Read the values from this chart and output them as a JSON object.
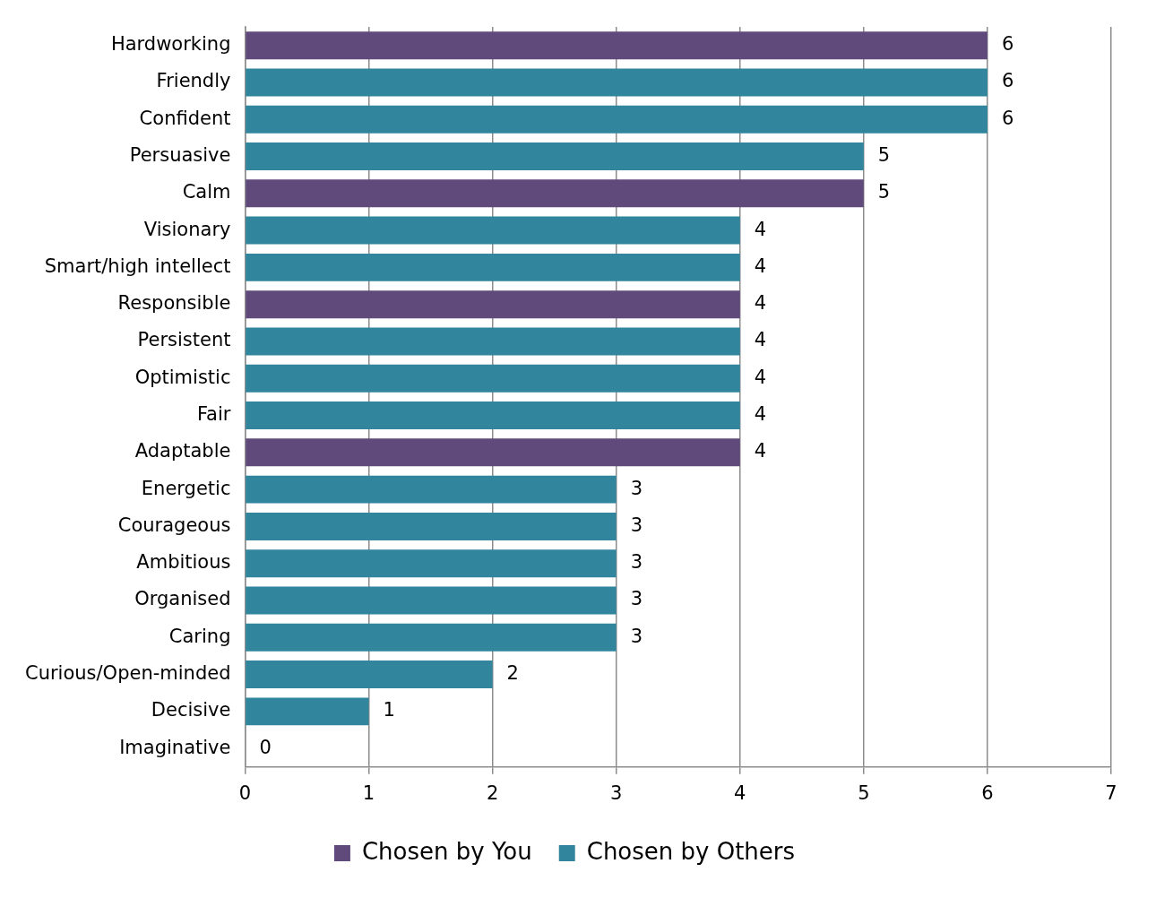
{
  "chart_data": {
    "type": "bar",
    "orientation": "horizontal",
    "stacked": true,
    "categories": [
      "Hardworking",
      "Friendly",
      "Confident",
      "Persuasive",
      "Calm",
      "Visionary",
      "Smart/high intellect",
      "Responsible",
      "Persistent",
      "Optimistic",
      "Fair",
      "Adaptable",
      "Energetic",
      "Courageous",
      "Ambitious",
      "Organised",
      "Caring",
      "Curious/Open-minded",
      "Decisive",
      "Imaginative"
    ],
    "series": [
      {
        "name": "Chosen by You",
        "color": "#604a7b",
        "values": [
          6,
          null,
          null,
          null,
          5,
          null,
          null,
          4,
          null,
          null,
          null,
          4,
          null,
          null,
          null,
          null,
          null,
          null,
          null,
          null
        ]
      },
      {
        "name": "Chosen by Others",
        "color": "#31859c",
        "values": [
          null,
          6,
          6,
          5,
          null,
          4,
          4,
          null,
          4,
          4,
          4,
          null,
          3,
          3,
          3,
          3,
          3,
          2,
          1,
          0
        ]
      }
    ],
    "xlim": [
      0,
      7
    ],
    "xticks": [
      0,
      1,
      2,
      3,
      4,
      5,
      6,
      7
    ],
    "grid": "x",
    "legend": "bottom",
    "data_labels": true
  }
}
